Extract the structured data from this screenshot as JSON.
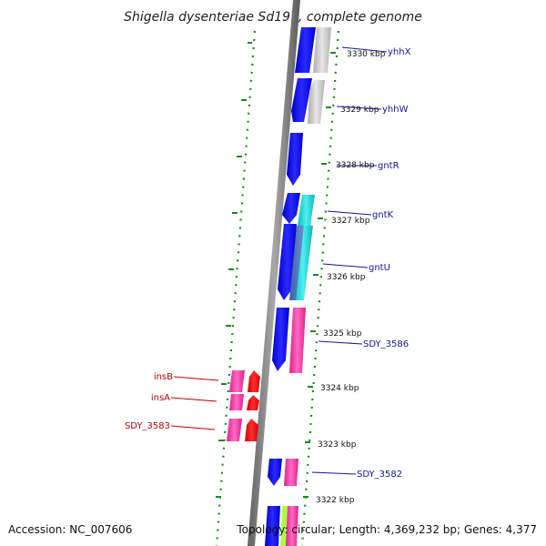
{
  "title": "Shigella dysenteriae Sd197, complete genome",
  "footer": {
    "accession": "Accession: NC_007606",
    "topology": "Topology: circular; Length: 4,369,232 bp; Genes: 4,377"
  },
  "kbp_labels": [
    "3330 kbp",
    "3329 kbp",
    "3328 kbp",
    "3327 kbp",
    "3326 kbp",
    "3325 kbp",
    "3324 kbp",
    "3323 kbp",
    "3322 kbp"
  ],
  "genes_right": [
    "yhhX",
    "yhhW",
    "gntR",
    "gntK",
    "gntU",
    "SDY_3586",
    "SDY_3582"
  ],
  "genes_left": [
    "insB",
    "insA",
    "SDY_3583"
  ],
  "colors": {
    "backbone": "#808080",
    "tick": "#1a8c1a",
    "cds": "#0a0af0",
    "gene_pink": "#ff3fa8",
    "gene_red": "#ff1010",
    "gene_grey": "#c8c8c8",
    "gene_cyan": "#22d6d6",
    "gene_lime": "#aaff44",
    "label_blue": "#1414a0",
    "label_red": "#c00000"
  }
}
